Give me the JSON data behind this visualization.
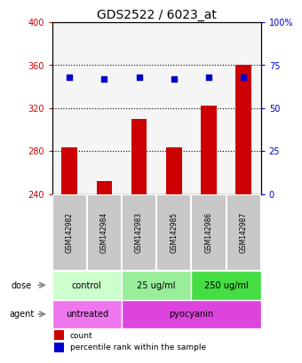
{
  "title": "GDS2522 / 6023_at",
  "samples": [
    "GSM142982",
    "GSM142984",
    "GSM142983",
    "GSM142985",
    "GSM142986",
    "GSM142987"
  ],
  "counts": [
    283,
    252,
    310,
    283,
    322,
    360
  ],
  "percentiles": [
    68,
    67,
    68,
    67,
    68,
    68
  ],
  "ylim_left": [
    240,
    400
  ],
  "ylim_right": [
    0,
    100
  ],
  "yticks_left": [
    240,
    280,
    320,
    360,
    400
  ],
  "yticks_right": [
    0,
    25,
    50,
    75,
    100
  ],
  "bar_color": "#cc0000",
  "dot_color": "#0000cc",
  "bar_bottom": 240,
  "dose_groups": [
    {
      "label": "control",
      "cols": [
        0,
        1
      ],
      "color": "#ccffcc"
    },
    {
      "label": "25 ug/ml",
      "cols": [
        2,
        3
      ],
      "color": "#99ee99"
    },
    {
      "label": "250 ug/ml",
      "cols": [
        4,
        5
      ],
      "color": "#44dd44"
    }
  ],
  "agent_groups": [
    {
      "label": "untreated",
      "cols": [
        0,
        1
      ],
      "color": "#ee77ee"
    },
    {
      "label": "pyocyanin",
      "cols": [
        2,
        3,
        4,
        5
      ],
      "color": "#dd44dd"
    }
  ],
  "dose_label": "dose",
  "agent_label": "agent",
  "tick_label_color_left": "#cc0000",
  "tick_label_color_right": "#0000cc",
  "legend_count_color": "#cc0000",
  "legend_pct_color": "#0000cc",
  "background_color": "#ffffff",
  "sample_bg_color": "#c8c8c8",
  "sample_border_color": "#ffffff",
  "grid_color": "#000000",
  "title_fontsize": 10,
  "tick_fontsize": 7,
  "sample_fontsize": 5.5,
  "row_fontsize": 7,
  "legend_fontsize": 6.5,
  "dot_size": 14
}
